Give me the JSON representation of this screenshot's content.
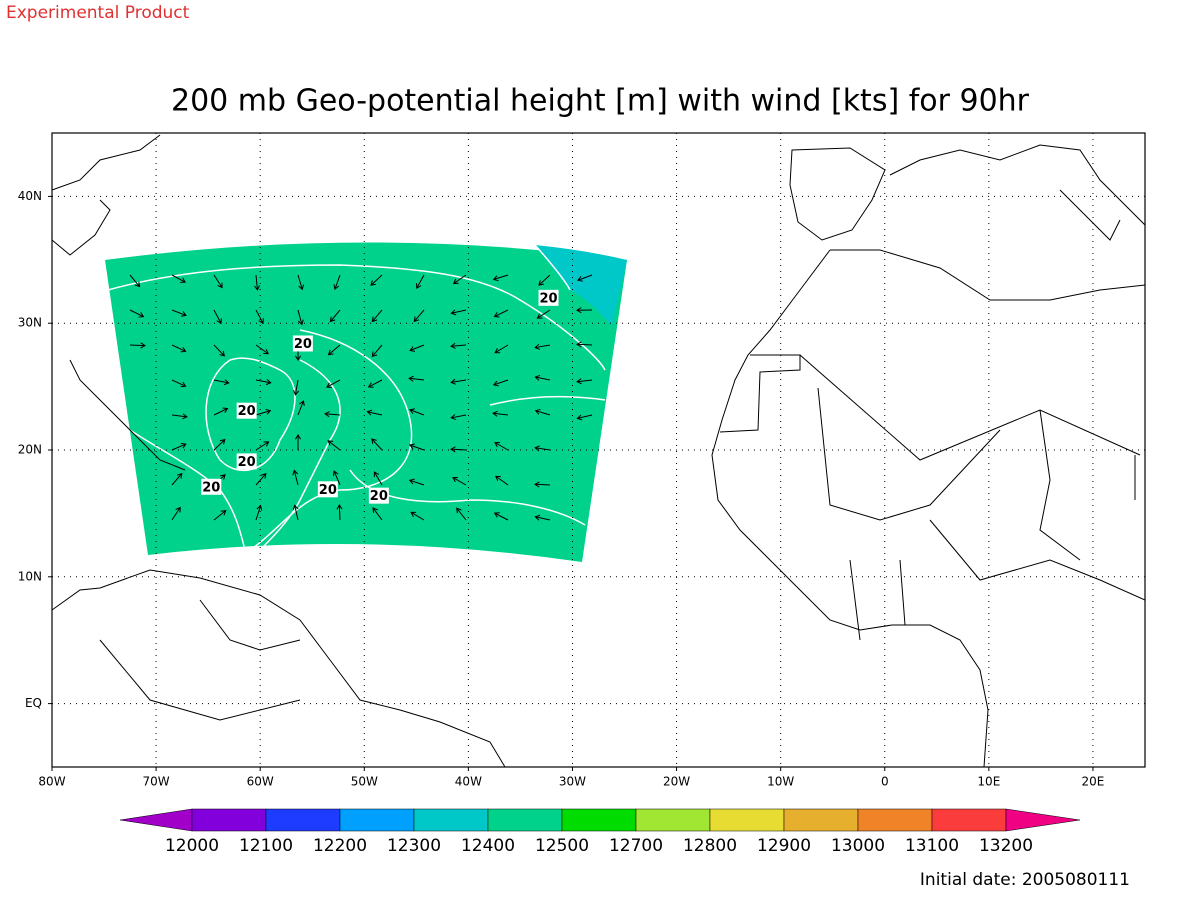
{
  "header": {
    "note": "Experimental Product"
  },
  "map": {
    "title": "200 mb Geo-potential height [m] with wind [kts] for 90hr",
    "xlim": [
      -80,
      25
    ],
    "ylim": [
      -5,
      45
    ],
    "xticks": [
      {
        "value": -80,
        "label": "80W"
      },
      {
        "value": -70,
        "label": "70W"
      },
      {
        "value": -60,
        "label": "60W"
      },
      {
        "value": -50,
        "label": "50W"
      },
      {
        "value": -40,
        "label": "40W"
      },
      {
        "value": -30,
        "label": "30W"
      },
      {
        "value": -20,
        "label": "20W"
      },
      {
        "value": -10,
        "label": "10W"
      },
      0,
      {
        "value": 10,
        "label": "10E"
      },
      {
        "value": 20,
        "label": "20E"
      }
    ],
    "yticks": [
      {
        "value": 0,
        "label": "EQ"
      },
      {
        "value": 10,
        "label": "10N"
      },
      {
        "value": 20,
        "label": "20N"
      },
      {
        "value": 30,
        "label": "30N"
      },
      {
        "value": 40,
        "label": "40N"
      }
    ],
    "grid": true,
    "shading": {
      "levels": [
        12000,
        12100,
        12200,
        12300,
        12400,
        12500,
        12700,
        12800,
        12900,
        13000,
        13100,
        13200
      ],
      "colors": [
        "#a000c8",
        "#8200dc",
        "#1e3cff",
        "#00a0ff",
        "#00c8c8",
        "#00d28c",
        "#00dc00",
        "#a0e632",
        "#e6dc32",
        "#e6af2d",
        "#f08228",
        "#fa3c3c",
        "#f00082"
      ]
    },
    "contour_labels": [
      {
        "value": 20,
        "lon": -32.3,
        "lat": 32.0
      },
      {
        "value": 20,
        "lon": -55.9,
        "lat": 28.4
      },
      {
        "value": 20,
        "lon": -61.3,
        "lat": 23.1
      },
      {
        "value": 20,
        "lon": -61.3,
        "lat": 19.1
      },
      {
        "value": 20,
        "lon": -64.7,
        "lat": 17.1
      },
      {
        "value": 20,
        "lon": -53.5,
        "lat": 16.9
      },
      {
        "value": 20,
        "lon": -48.6,
        "lat": 16.4
      }
    ],
    "footer": "Initial date: 2005080111"
  }
}
